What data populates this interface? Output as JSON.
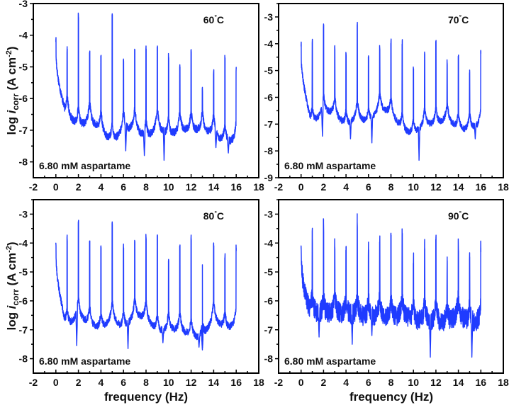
{
  "figure": {
    "x_axis_title": "frequency (Hz)",
    "y_axis_title_prefix": "log ",
    "y_axis_title_italic": "i",
    "y_axis_title_sub": "corr",
    "y_axis_title_unit": " (A cm",
    "y_axis_title_sup": "-2",
    "y_axis_title_close": ")",
    "line_color": "#1f3bff"
  },
  "chart_data": [
    {
      "type": "line",
      "title": "60°C",
      "annotation": "6.80 mM aspartame",
      "temperature_label": "60",
      "temperature_unit": "°C",
      "xlabel": "",
      "ylabel": "log icorr (A cm-2)",
      "xlim": [
        -2,
        18
      ],
      "ylim": [
        -8.5,
        -3
      ],
      "xticks": [
        -2,
        0,
        2,
        4,
        6,
        8,
        10,
        12,
        14,
        16,
        18
      ],
      "yticks": [
        -3,
        -4,
        -5,
        -6,
        -7,
        -8
      ],
      "grid": false,
      "peak_frequencies": [
        0,
        1,
        2,
        3,
        4,
        5,
        6,
        7,
        8,
        9,
        10,
        11,
        12,
        13,
        14,
        15,
        16
      ],
      "peak_values": [
        -4.15,
        -4.45,
        -3.4,
        -4.55,
        -4.72,
        -3.38,
        -4.75,
        -4.52,
        -4.42,
        -4.43,
        -4.68,
        -5.05,
        -4.45,
        -5.67,
        -5.18,
        -4.7,
        -5.05
      ],
      "baseline_values": [
        -6.1,
        -6.5,
        -6.9,
        -6.7,
        -7.0,
        -7.4,
        -7.0,
        -6.9,
        -7.3,
        -6.9,
        -7.2,
        -7.0,
        -7.0,
        -7.0,
        -7.1,
        -7.4,
        -7.3
      ],
      "minima": [
        [
          6.2,
          -7.65
        ],
        [
          7.85,
          -7.8
        ],
        [
          9.6,
          -7.95
        ],
        [
          15.3,
          -7.72
        ],
        [
          14.2,
          -7.55
        ]
      ]
    },
    {
      "type": "line",
      "title": "70°C",
      "annotation": "6.80 mM aspartame",
      "temperature_label": "70",
      "temperature_unit": "°C",
      "xlabel": "",
      "ylabel": "",
      "xlim": [
        -2,
        18
      ],
      "ylim": [
        -9,
        -2.5
      ],
      "xticks": [
        -2,
        0,
        2,
        4,
        6,
        8,
        10,
        12,
        14,
        16,
        18
      ],
      "yticks": [
        -3,
        -4,
        -5,
        -6,
        -7,
        -8,
        -9
      ],
      "grid": false,
      "peak_frequencies": [
        0,
        1,
        2,
        3,
        4,
        5,
        6,
        7,
        8,
        9,
        10,
        11,
        12,
        13,
        14,
        15,
        16
      ],
      "peak_values": [
        -4.05,
        -3.93,
        -3.3,
        -4.15,
        -4.35,
        -3.28,
        -4.45,
        -4.13,
        -3.9,
        -3.92,
        -4.93,
        -4.35,
        -3.9,
        -4.72,
        -4.47,
        -4.98,
        -4.37
      ],
      "baseline_values": [
        -6.2,
        -7.0,
        -6.5,
        -6.6,
        -7.1,
        -6.7,
        -7.0,
        -6.4,
        -6.6,
        -7.2,
        -7.4,
        -7.0,
        -7.0,
        -6.8,
        -7.2,
        -7.2,
        -7.0
      ],
      "minima": [
        [
          1.9,
          -7.45
        ],
        [
          4.4,
          -7.55
        ],
        [
          6.3,
          -7.7
        ],
        [
          10.5,
          -8.35
        ],
        [
          15.5,
          -7.55
        ]
      ]
    },
    {
      "type": "line",
      "title": "80°C",
      "annotation": "6.80 mM aspartame",
      "temperature_label": "80",
      "temperature_unit": "°C",
      "xlabel": "frequency (Hz)",
      "ylabel": "log icorr (A cm-2)",
      "xlim": [
        -2,
        18
      ],
      "ylim": [
        -8.5,
        -2.5
      ],
      "xticks": [
        -2,
        0,
        2,
        4,
        6,
        8,
        10,
        12,
        14,
        16,
        18
      ],
      "yticks": [
        -3,
        -4,
        -5,
        -6,
        -7,
        -8
      ],
      "grid": false,
      "peak_frequencies": [
        0,
        1,
        2,
        3,
        4,
        5,
        6,
        7,
        8,
        9,
        10,
        11,
        12,
        13,
        14,
        15,
        16
      ],
      "peak_values": [
        -4.0,
        -3.83,
        -3.28,
        -4.0,
        -4.12,
        -3.27,
        -4.15,
        -3.95,
        -3.8,
        -3.78,
        -4.65,
        -4.15,
        -3.82,
        -4.75,
        -4.1,
        -4.47,
        -4.17
      ],
      "baseline_values": [
        -6.2,
        -6.9,
        -6.5,
        -6.8,
        -7.0,
        -6.6,
        -7.0,
        -6.5,
        -6.6,
        -7.1,
        -7.0,
        -7.0,
        -7.2,
        -7.3,
        -6.6,
        -7.0,
        -6.8
      ],
      "minima": [
        [
          1.85,
          -7.55
        ],
        [
          6.4,
          -7.65
        ],
        [
          9.5,
          -7.45
        ],
        [
          13.0,
          -7.7
        ],
        [
          12.7,
          -7.6
        ]
      ]
    },
    {
      "type": "line",
      "title": "90°C",
      "annotation": "6.80 mM aspartame",
      "temperature_label": "90",
      "temperature_unit": "°C",
      "xlabel": "frequency (Hz)",
      "ylabel": "",
      "xlim": [
        -2,
        18
      ],
      "ylim": [
        -8.5,
        -2.5
      ],
      "xticks": [
        -2,
        0,
        2,
        4,
        6,
        8,
        10,
        12,
        14,
        16,
        18
      ],
      "yticks": [
        -3,
        -4,
        -5,
        -6,
        -7,
        -8
      ],
      "grid": false,
      "peak_frequencies": [
        0,
        1,
        2,
        3,
        4,
        5,
        6,
        7,
        8,
        9,
        10,
        11,
        12,
        13,
        14,
        15,
        16
      ],
      "peak_values": [
        -4.1,
        -3.83,
        -3.28,
        -4.13,
        -4.13,
        -3.27,
        -4.28,
        -4.05,
        -3.8,
        -3.8,
        -4.65,
        -4.15,
        -3.82,
        -4.72,
        -4.2,
        -4.62,
        -4.17
      ],
      "baseline_values": [
        -6.3,
        -6.4,
        -6.5,
        -6.4,
        -6.5,
        -6.5,
        -6.6,
        -6.5,
        -6.6,
        -6.5,
        -6.7,
        -6.7,
        -6.7,
        -6.8,
        -6.5,
        -6.8,
        -6.7
      ],
      "minima": [
        [
          1.6,
          -7.25
        ],
        [
          4.55,
          -7.5
        ],
        [
          11.5,
          -7.95
        ],
        [
          15.2,
          -7.95
        ],
        [
          6.3,
          -7.2
        ]
      ]
    }
  ]
}
